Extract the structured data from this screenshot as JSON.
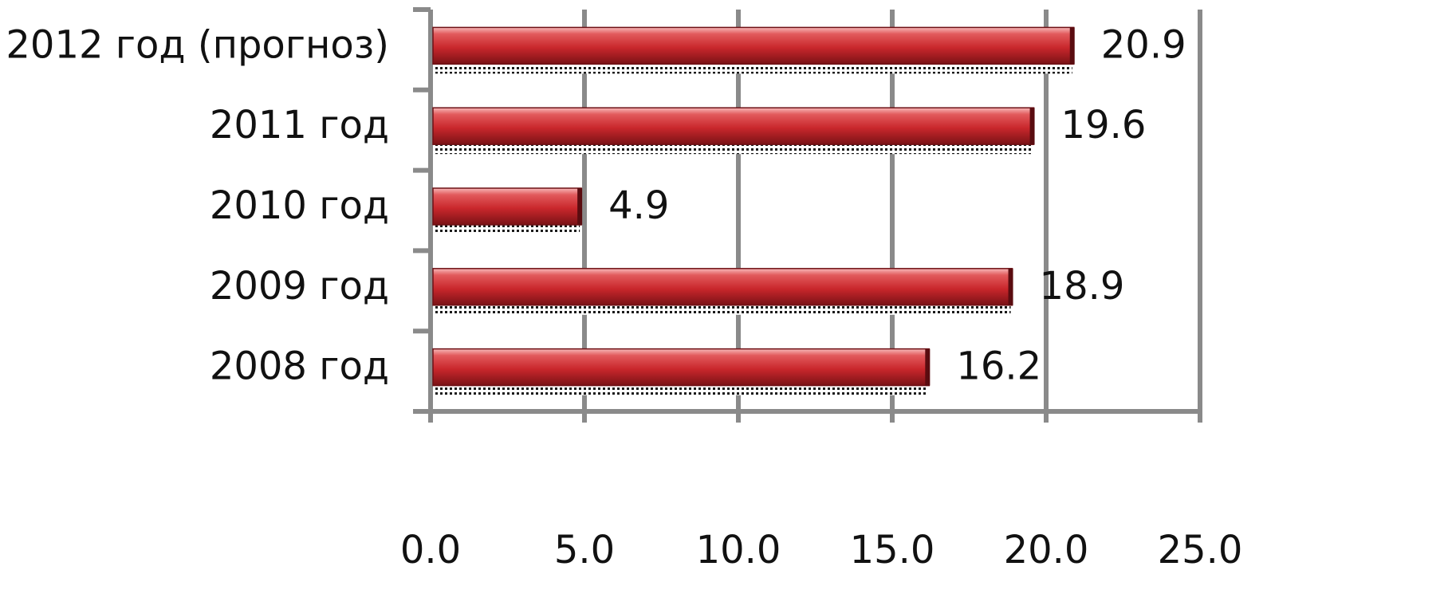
{
  "chart_data": {
    "type": "bar",
    "orientation": "horizontal",
    "title": "",
    "xlabel": "",
    "ylabel": "",
    "categories": [
      "2012 год (прогноз)",
      "2011 год",
      "2010 год",
      "2009 год",
      "2008 год"
    ],
    "series": [
      {
        "values": [
          20.9,
          19.6,
          4.9,
          18.9,
          16.2
        ]
      }
    ],
    "xlim": [
      0,
      25
    ],
    "x_ticks": [
      "0.0",
      "5.0",
      "10.0",
      "15.0",
      "20.0",
      "25.0"
    ],
    "data_labels": [
      "20.9",
      "19.6",
      "4.9",
      "18.9",
      "16.2"
    ],
    "grid": "vertical",
    "legend": "none",
    "bar_color": "#c9272c",
    "grid_color": "#8a8a8a"
  }
}
